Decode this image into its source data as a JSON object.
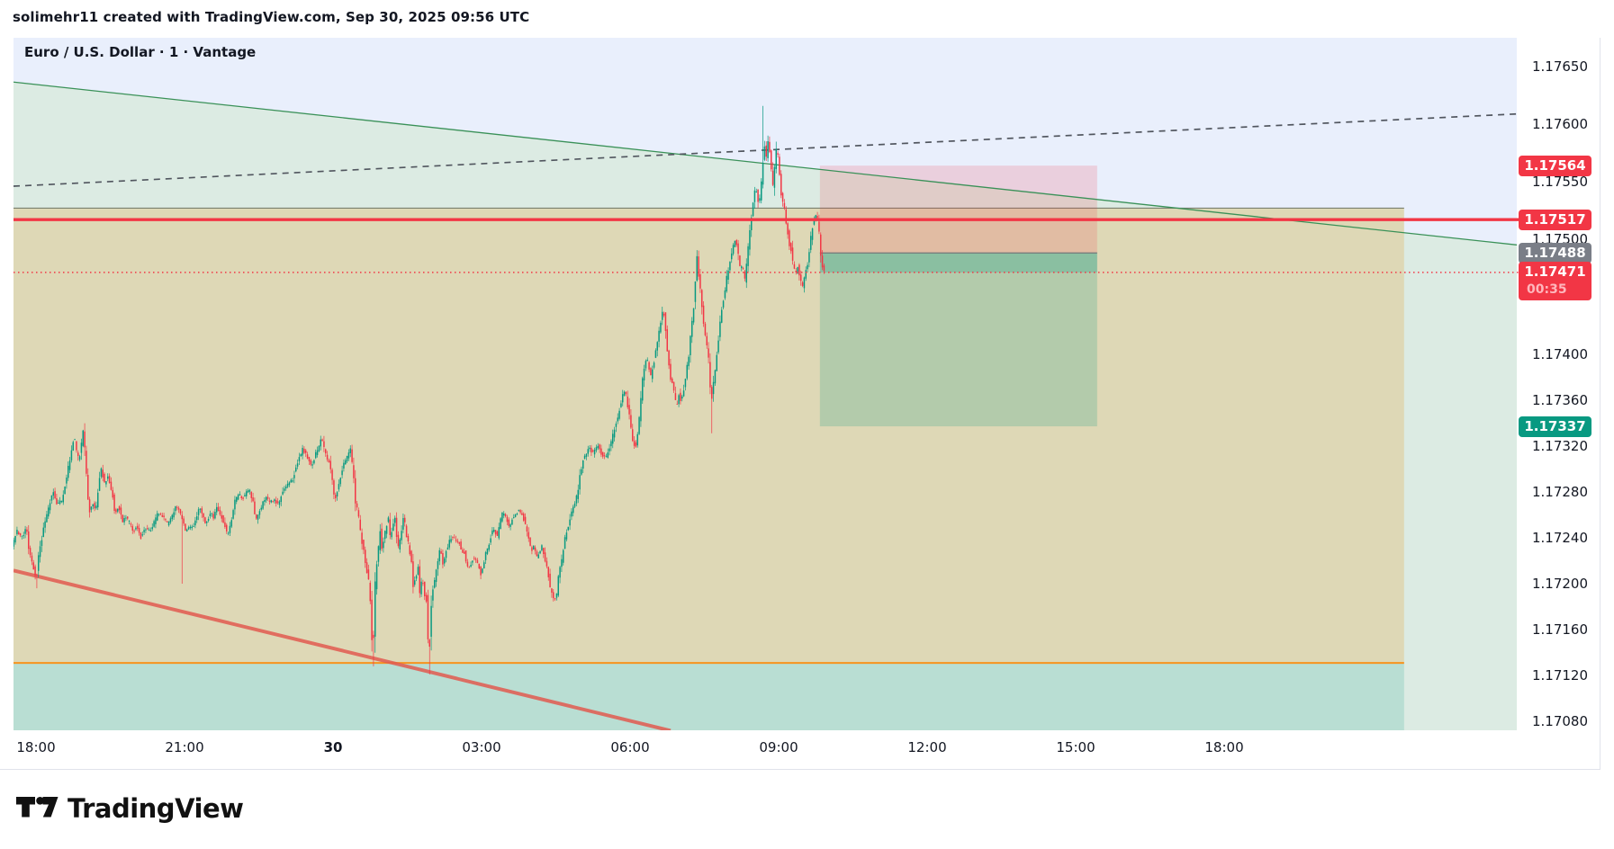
{
  "header": {
    "attribution": "solimehr11 created with TradingView.com, Sep 30, 2025 09:56 UTC"
  },
  "chart": {
    "title": "Euro / U.S. Dollar · 1 · Vantage",
    "symbol": "Euro / U.S. Dollar",
    "interval": "1",
    "venue": "Vantage"
  },
  "price_axis": {
    "labels": [
      "1.17650",
      "1.17600",
      "1.17550",
      "1.17500",
      "1.17400",
      "1.17360",
      "1.17320",
      "1.17280",
      "1.17240",
      "1.17200",
      "1.17160",
      "1.17120",
      "1.17080"
    ],
    "badges": [
      {
        "text": "1.17564",
        "price": 1.17564,
        "bg": "#f23645",
        "role": "stop-loss"
      },
      {
        "text": "1.17517",
        "price": 1.17517,
        "bg": "#f23645",
        "role": "horizontal-line"
      },
      {
        "text": "1.17488",
        "price": 1.17488,
        "bg": "#7a7e87",
        "role": "entry"
      },
      {
        "text": "1.17471",
        "price": 1.17471,
        "bg": "#f23645",
        "role": "last-price",
        "countdown": "00:35"
      },
      {
        "text": "1.17337",
        "price": 1.17337,
        "bg": "#089981",
        "role": "take-profit"
      }
    ]
  },
  "time_axis": {
    "labels": [
      {
        "text": "18:00",
        "m": 0
      },
      {
        "text": "21:00",
        "m": 180
      },
      {
        "text": "30",
        "m": 360,
        "bold": true
      },
      {
        "text": "03:00",
        "m": 540
      },
      {
        "text": "06:00",
        "m": 720
      },
      {
        "text": "09:00",
        "m": 900
      },
      {
        "text": "12:00",
        "m": 1080
      },
      {
        "text": "15:00",
        "m": 1260
      },
      {
        "text": "18:00",
        "m": 1440
      }
    ]
  },
  "footer": {
    "logo_text": "TradingView"
  },
  "colors": {
    "up": "#089981",
    "down": "#f23645",
    "blue_fill": "#e9effc",
    "mint_fill": "#dcebe3",
    "tan_fill": "#ded8b6",
    "orange": "#f7941e",
    "red_line": "#f23645",
    "green_trend": "#3a9158",
    "dashed_trend": "#50555e",
    "red_diagonal": "#e25b50",
    "badge_gray": "#7a7e87",
    "text": "#131722"
  },
  "chart_data": {
    "type": "candlestick",
    "symbol": "EURUSD",
    "interval_minutes": 1,
    "time_origin": "Sep 29 18:00 UTC (t = minutes from 18:00)",
    "price_range_visible": [
      1.17072,
      1.17679
    ],
    "last_price": {
      "price": 1.17471,
      "countdown": "00:35",
      "direction": "down"
    },
    "horizontal_line": {
      "price": 1.17517,
      "color": "red"
    },
    "short_position_tool": {
      "entry": 1.17488,
      "stop": 1.17564,
      "target": 1.17337,
      "t1": 950,
      "t2": 1286
    },
    "supply_zone": {
      "top": 1.17527,
      "bottom": 1.17131,
      "t1": -30,
      "t2": 1658
    },
    "trendlines": [
      {
        "name": "descending-resistance",
        "style": "solid",
        "color": "green",
        "p1": {
          "t": -30,
          "price": 1.17637
        },
        "p2": {
          "t": 1794,
          "price": 1.17495
        }
      },
      {
        "name": "rising-projection",
        "style": "dashed",
        "color": "dark-gray",
        "p1": {
          "t": -30,
          "price": 1.17546
        },
        "p2": {
          "t": 1794,
          "price": 1.17609
        }
      },
      {
        "name": "falling-support",
        "style": "solid",
        "color": "red",
        "p1": {
          "t": -30,
          "price": 1.17212
        },
        "p2": {
          "t": 769,
          "price": 1.17072
        }
      }
    ],
    "path": [
      [
        -28,
        1.17232
      ],
      [
        -22,
        1.17246
      ],
      [
        -15,
        1.1724
      ],
      [
        -11,
        1.17252
      ],
      [
        -8,
        1.1723
      ],
      [
        -2,
        1.17214
      ],
      [
        1,
        1.17203
      ],
      [
        4,
        1.17222
      ],
      [
        11,
        1.17252
      ],
      [
        17,
        1.17268
      ],
      [
        22,
        1.17281
      ],
      [
        26,
        1.1727
      ],
      [
        33,
        1.17273
      ],
      [
        38,
        1.17293
      ],
      [
        44,
        1.17316
      ],
      [
        47,
        1.1733
      ],
      [
        50,
        1.17316
      ],
      [
        53,
        1.17306
      ],
      [
        58,
        1.17333
      ],
      [
        62,
        1.17298
      ],
      [
        65,
        1.1726
      ],
      [
        69,
        1.17271
      ],
      [
        73,
        1.17262
      ],
      [
        76,
        1.17282
      ],
      [
        80,
        1.173
      ],
      [
        84,
        1.17288
      ],
      [
        88,
        1.17293
      ],
      [
        93,
        1.1728
      ],
      [
        97,
        1.17261
      ],
      [
        101,
        1.17268
      ],
      [
        106,
        1.17254
      ],
      [
        110,
        1.17259
      ],
      [
        115,
        1.17252
      ],
      [
        119,
        1.17245
      ],
      [
        123,
        1.17251
      ],
      [
        128,
        1.17241
      ],
      [
        133,
        1.17248
      ],
      [
        139,
        1.17246
      ],
      [
        144,
        1.17253
      ],
      [
        149,
        1.17262
      ],
      [
        155,
        1.17258
      ],
      [
        160,
        1.17252
      ],
      [
        166,
        1.17259
      ],
      [
        171,
        1.17268
      ],
      [
        177,
        1.1726
      ],
      [
        182,
        1.17247
      ],
      [
        188,
        1.17249
      ],
      [
        193,
        1.17251
      ],
      [
        199,
        1.17268
      ],
      [
        203,
        1.17258
      ],
      [
        207,
        1.17251
      ],
      [
        212,
        1.17262
      ],
      [
        216,
        1.17258
      ],
      [
        220,
        1.17266
      ],
      [
        225,
        1.1726
      ],
      [
        229,
        1.17253
      ],
      [
        233,
        1.17241
      ],
      [
        238,
        1.17256
      ],
      [
        242,
        1.17271
      ],
      [
        247,
        1.17279
      ],
      [
        251,
        1.17273
      ],
      [
        255,
        1.17279
      ],
      [
        260,
        1.17281
      ],
      [
        264,
        1.17271
      ],
      [
        267,
        1.17254
      ],
      [
        272,
        1.17263
      ],
      [
        276,
        1.17271
      ],
      [
        280,
        1.17275
      ],
      [
        285,
        1.17271
      ],
      [
        289,
        1.17273
      ],
      [
        295,
        1.17269
      ],
      [
        299,
        1.17279
      ],
      [
        303,
        1.17284
      ],
      [
        308,
        1.17289
      ],
      [
        312,
        1.17291
      ],
      [
        316,
        1.17301
      ],
      [
        321,
        1.17311
      ],
      [
        324,
        1.17318
      ],
      [
        327,
        1.17314
      ],
      [
        332,
        1.17306
      ],
      [
        335,
        1.17302
      ],
      [
        339,
        1.17311
      ],
      [
        344,
        1.17321
      ],
      [
        347,
        1.17328
      ],
      [
        350,
        1.17318
      ],
      [
        353,
        1.1731
      ],
      [
        357,
        1.17305
      ],
      [
        360,
        1.17288
      ],
      [
        363,
        1.17271
      ],
      [
        367,
        1.17283
      ],
      [
        371,
        1.17296
      ],
      [
        375,
        1.17306
      ],
      [
        379,
        1.17311
      ],
      [
        382,
        1.17317
      ],
      [
        385,
        1.173
      ],
      [
        388,
        1.17272
      ],
      [
        392,
        1.17258
      ],
      [
        395,
        1.1724
      ],
      [
        398,
        1.17228
      ],
      [
        401,
        1.17215
      ],
      [
        405,
        1.172
      ],
      [
        407,
        1.1717
      ],
      [
        409,
        1.17133
      ],
      [
        411,
        1.17181
      ],
      [
        413,
        1.17216
      ],
      [
        416,
        1.17231
      ],
      [
        418,
        1.17245
      ],
      [
        420,
        1.17231
      ],
      [
        423,
        1.17241
      ],
      [
        425,
        1.1725
      ],
      [
        428,
        1.17257
      ],
      [
        430,
        1.17241
      ],
      [
        432,
        1.17246
      ],
      [
        434,
        1.17253
      ],
      [
        436,
        1.17257
      ],
      [
        440,
        1.1723
      ],
      [
        443,
        1.17241
      ],
      [
        445,
        1.17253
      ],
      [
        447,
        1.17259
      ],
      [
        450,
        1.17241
      ],
      [
        453,
        1.17233
      ],
      [
        456,
        1.17217
      ],
      [
        458,
        1.172
      ],
      [
        461,
        1.17206
      ],
      [
        464,
        1.17214
      ],
      [
        466,
        1.17192
      ],
      [
        469,
        1.17206
      ],
      [
        472,
        1.1719
      ],
      [
        474,
        1.17185
      ],
      [
        477,
        1.17125
      ],
      [
        479,
        1.17176
      ],
      [
        482,
        1.17198
      ],
      [
        485,
        1.17206
      ],
      [
        488,
        1.17221
      ],
      [
        491,
        1.17232
      ],
      [
        494,
        1.17217
      ],
      [
        497,
        1.17226
      ],
      [
        502,
        1.17237
      ],
      [
        505,
        1.17242
      ],
      [
        509,
        1.17239
      ],
      [
        514,
        1.17235
      ],
      [
        517,
        1.17229
      ],
      [
        520,
        1.17227
      ],
      [
        524,
        1.17214
      ],
      [
        527,
        1.17216
      ],
      [
        531,
        1.17223
      ],
      [
        535,
        1.17219
      ],
      [
        538,
        1.17214
      ],
      [
        540,
        1.17208
      ],
      [
        543,
        1.17216
      ],
      [
        545,
        1.17224
      ],
      [
        549,
        1.17231
      ],
      [
        552,
        1.17241
      ],
      [
        555,
        1.17249
      ],
      [
        560,
        1.17241
      ],
      [
        563,
        1.17253
      ],
      [
        567,
        1.17263
      ],
      [
        570,
        1.17259
      ],
      [
        575,
        1.17247
      ],
      [
        578,
        1.17257
      ],
      [
        582,
        1.17261
      ],
      [
        587,
        1.17264
      ],
      [
        591,
        1.17259
      ],
      [
        595,
        1.17249
      ],
      [
        598,
        1.17241
      ],
      [
        601,
        1.17228
      ],
      [
        604,
        1.17232
      ],
      [
        608,
        1.17222
      ],
      [
        611,
        1.17227
      ],
      [
        614,
        1.17232
      ],
      [
        617,
        1.17224
      ],
      [
        621,
        1.17212
      ],
      [
        624,
        1.17198
      ],
      [
        627,
        1.17189
      ],
      [
        631,
        1.17186
      ],
      [
        634,
        1.17205
      ],
      [
        638,
        1.1722
      ],
      [
        641,
        1.17235
      ],
      [
        645,
        1.17248
      ],
      [
        648,
        1.17258
      ],
      [
        651,
        1.17264
      ],
      [
        655,
        1.17272
      ],
      [
        658,
        1.17283
      ],
      [
        661,
        1.17298
      ],
      [
        665,
        1.1731
      ],
      [
        671,
        1.17318
      ],
      [
        676,
        1.17314
      ],
      [
        682,
        1.1732
      ],
      [
        687,
        1.17312
      ],
      [
        692,
        1.1731
      ],
      [
        696,
        1.17318
      ],
      [
        701,
        1.17332
      ],
      [
        707,
        1.17348
      ],
      [
        711,
        1.17363
      ],
      [
        715,
        1.1737
      ],
      [
        718,
        1.17356
      ],
      [
        721,
        1.1734
      ],
      [
        724,
        1.17325
      ],
      [
        728,
        1.17318
      ],
      [
        731,
        1.17335
      ],
      [
        734,
        1.1736
      ],
      [
        737,
        1.17385
      ],
      [
        741,
        1.17398
      ],
      [
        746,
        1.1738
      ],
      [
        749,
        1.1739
      ],
      [
        753,
        1.17408
      ],
      [
        757,
        1.17425
      ],
      [
        761,
        1.1744
      ],
      [
        764,
        1.1742
      ],
      [
        767,
        1.17398
      ],
      [
        770,
        1.1738
      ],
      [
        774,
        1.17368
      ],
      [
        777,
        1.17352
      ],
      [
        780,
        1.17365
      ],
      [
        783,
        1.17358
      ],
      [
        786,
        1.1737
      ],
      [
        789,
        1.17385
      ],
      [
        792,
        1.174
      ],
      [
        795,
        1.1742
      ],
      [
        798,
        1.17442
      ],
      [
        800,
        1.1746
      ],
      [
        802,
        1.17484
      ],
      [
        804,
        1.1747
      ],
      [
        806,
        1.17459
      ],
      [
        808,
        1.17441
      ],
      [
        810,
        1.17426
      ],
      [
        813,
        1.17411
      ],
      [
        815,
        1.17401
      ],
      [
        817,
        1.17391
      ],
      [
        819,
        1.17353
      ],
      [
        821,
        1.17371
      ],
      [
        824,
        1.17386
      ],
      [
        826,
        1.17401
      ],
      [
        829,
        1.17421
      ],
      [
        832,
        1.17441
      ],
      [
        836,
        1.17456
      ],
      [
        839,
        1.17471
      ],
      [
        842,
        1.17481
      ],
      [
        845,
        1.17491
      ],
      [
        849,
        1.175
      ],
      [
        851,
        1.17491
      ],
      [
        853,
        1.17481
      ],
      [
        855,
        1.17471
      ],
      [
        857,
        1.17479
      ],
      [
        860,
        1.17464
      ],
      [
        862,
        1.17476
      ],
      [
        864,
        1.17491
      ],
      [
        866,
        1.17506
      ],
      [
        868,
        1.17521
      ],
      [
        870,
        1.17531
      ],
      [
        873,
        1.17546
      ],
      [
        875,
        1.17536
      ],
      [
        877,
        1.17529
      ],
      [
        879,
        1.17541
      ],
      [
        881,
        1.17561
      ],
      [
        884,
        1.17581
      ],
      [
        886,
        1.17573
      ],
      [
        888,
        1.17586
      ],
      [
        890,
        1.17576
      ],
      [
        892,
        1.17561
      ],
      [
        894,
        1.17546
      ],
      [
        897,
        1.17571
      ],
      [
        899,
        1.17581
      ],
      [
        901,
        1.17566
      ],
      [
        903,
        1.17546
      ],
      [
        905,
        1.17536
      ],
      [
        908,
        1.17526
      ],
      [
        910,
        1.17516
      ],
      [
        912,
        1.17506
      ],
      [
        914,
        1.17496
      ],
      [
        916,
        1.17491
      ],
      [
        918,
        1.17479
      ],
      [
        921,
        1.17469
      ],
      [
        924,
        1.17476
      ],
      [
        927,
        1.17467
      ],
      [
        930,
        1.17459
      ],
      [
        933,
        1.17471
      ],
      [
        937,
        1.17481
      ],
      [
        940,
        1.17501
      ],
      [
        943,
        1.17516
      ],
      [
        947,
        1.17521
      ],
      [
        949,
        1.17513
      ],
      [
        951,
        1.17496
      ],
      [
        953,
        1.17481
      ],
      [
        955,
        1.17472
      ]
    ],
    "spikes": [
      {
        "t": 1,
        "p": 1.17196
      },
      {
        "t": 177,
        "p": 1.172
      },
      {
        "t": 409,
        "p": 1.17128
      },
      {
        "t": 477,
        "p": 1.17121
      },
      {
        "t": 819,
        "p": 1.17331
      },
      {
        "t": 881,
        "p": 1.17616,
        "high": true
      }
    ]
  }
}
